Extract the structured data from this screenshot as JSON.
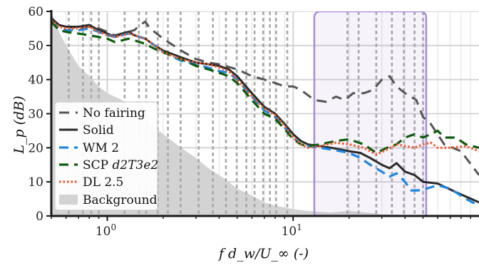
{
  "chart_data": {
    "type": "line",
    "xscale": "log",
    "xlim": [
      0.5,
      100
    ],
    "ylim": [
      0,
      60
    ],
    "xlabel": "f d_w/U_∞ (-)",
    "ylabel": "L_p (dB)",
    "xticks": [
      {
        "value": 1,
        "base": "10",
        "exp": "0"
      },
      {
        "value": 10,
        "base": "10",
        "exp": "1"
      }
    ],
    "yticks": [
      0,
      10,
      20,
      30,
      40,
      50,
      60
    ],
    "grid": true,
    "legend_position": "lower-left",
    "highlight_region": {
      "x0": 13,
      "x1": 52,
      "color": "#a78bdc"
    },
    "vertical_dotted_lines": [
      0.62,
      0.74,
      0.82,
      0.9,
      1.24,
      1.48,
      1.62,
      1.87,
      2.12,
      2.48,
      3.1,
      3.7,
      4.35,
      4.97,
      5.6,
      6.2,
      6.9,
      7.5,
      8.1,
      9.3,
      19.6,
      22.5,
      28,
      34,
      39.4,
      45,
      50
    ],
    "background": {
      "name": "Background",
      "color": "#d3d3d3",
      "points": [
        [
          0.5,
          60
        ],
        [
          0.55,
          54
        ],
        [
          0.6,
          50
        ],
        [
          0.7,
          44
        ],
        [
          0.8,
          41
        ],
        [
          0.9,
          38
        ],
        [
          1.0,
          36
        ],
        [
          1.2,
          34
        ],
        [
          1.5,
          30
        ],
        [
          1.8,
          26
        ],
        [
          2.0,
          24
        ],
        [
          2.5,
          20
        ],
        [
          3.0,
          17
        ],
        [
          3.5,
          14
        ],
        [
          4.0,
          12
        ],
        [
          4.5,
          10
        ],
        [
          5.0,
          8
        ],
        [
          5.5,
          7
        ],
        [
          6.0,
          6
        ],
        [
          7.0,
          4
        ],
        [
          8.0,
          3
        ],
        [
          9.0,
          2.5
        ],
        [
          10.0,
          2
        ],
        [
          12.0,
          1.5
        ],
        [
          14.0,
          1.2
        ],
        [
          16.0,
          1.0
        ],
        [
          20.0,
          1.5
        ],
        [
          25.0,
          1.0
        ],
        [
          30.0,
          0.5
        ],
        [
          40.0,
          0.3
        ],
        [
          100.0,
          0
        ]
      ]
    },
    "series": [
      {
        "name": "No fairing",
        "color": "#555555",
        "dash": "14,9",
        "width": 3,
        "points": [
          [
            0.5,
            58
          ],
          [
            0.55,
            56
          ],
          [
            0.6,
            55.5
          ],
          [
            0.7,
            55
          ],
          [
            0.8,
            55.5
          ],
          [
            0.9,
            55
          ],
          [
            1.0,
            54
          ],
          [
            1.1,
            53
          ],
          [
            1.2,
            53.5
          ],
          [
            1.3,
            54
          ],
          [
            1.4,
            54.5
          ],
          [
            1.5,
            56
          ],
          [
            1.6,
            57
          ],
          [
            1.7,
            55
          ],
          [
            2.0,
            52
          ],
          [
            2.5,
            48.5
          ],
          [
            3.0,
            46
          ],
          [
            3.5,
            45
          ],
          [
            4.0,
            44.5
          ],
          [
            5.0,
            43
          ],
          [
            6.0,
            41
          ],
          [
            7.0,
            40
          ],
          [
            8.0,
            39
          ],
          [
            9.0,
            38
          ],
          [
            10.0,
            38
          ],
          [
            11.0,
            37
          ],
          [
            13.0,
            34
          ],
          [
            15.0,
            33.5
          ],
          [
            17.0,
            35
          ],
          [
            19.0,
            34
          ],
          [
            21.0,
            36
          ],
          [
            24.0,
            36
          ],
          [
            27.0,
            37
          ],
          [
            30.0,
            40
          ],
          [
            33.0,
            41
          ],
          [
            36.0,
            38
          ],
          [
            40.0,
            36
          ],
          [
            43.0,
            35
          ],
          [
            46.0,
            34
          ],
          [
            50.0,
            29
          ],
          [
            55.0,
            27
          ],
          [
            65.0,
            21
          ],
          [
            80.0,
            19
          ],
          [
            100.0,
            12
          ]
        ]
      },
      {
        "name": "Solid",
        "color": "#2a2a2a",
        "dash": "",
        "width": 3,
        "points": [
          [
            0.5,
            58
          ],
          [
            0.55,
            56
          ],
          [
            0.6,
            55.5
          ],
          [
            0.7,
            55.5
          ],
          [
            0.8,
            56
          ],
          [
            0.9,
            54.5
          ],
          [
            1.0,
            53.5
          ],
          [
            1.1,
            52.5
          ],
          [
            1.2,
            53.5
          ],
          [
            1.3,
            54
          ],
          [
            1.4,
            53
          ],
          [
            1.6,
            52
          ],
          [
            1.8,
            50
          ],
          [
            2.0,
            48.5
          ],
          [
            2.5,
            46.5
          ],
          [
            3.0,
            45
          ],
          [
            3.5,
            44.5
          ],
          [
            4.0,
            44
          ],
          [
            4.5,
            43
          ],
          [
            5.0,
            41
          ],
          [
            6.0,
            36
          ],
          [
            7.0,
            32
          ],
          [
            8.0,
            30
          ],
          [
            9.0,
            27
          ],
          [
            10.0,
            24
          ],
          [
            11.0,
            22
          ],
          [
            12.0,
            21
          ],
          [
            14.0,
            20.5
          ],
          [
            16.0,
            20
          ],
          [
            18.0,
            19.5
          ],
          [
            20.0,
            19
          ],
          [
            23.0,
            18.5
          ],
          [
            26.0,
            17
          ],
          [
            30.0,
            15
          ],
          [
            33.0,
            14
          ],
          [
            36.0,
            15.5
          ],
          [
            40.0,
            13
          ],
          [
            45.0,
            12
          ],
          [
            50.0,
            10
          ],
          [
            60.0,
            9.5
          ],
          [
            75.0,
            7
          ],
          [
            100.0,
            4
          ]
        ]
      },
      {
        "name": "WM 2",
        "color": "#1f86e0",
        "dash": "13,8",
        "width": 3.2,
        "points": [
          [
            0.5,
            57
          ],
          [
            0.55,
            55
          ],
          [
            0.6,
            54.5
          ],
          [
            0.7,
            54.5
          ],
          [
            0.8,
            55
          ],
          [
            0.9,
            54
          ],
          [
            1.0,
            53
          ],
          [
            1.1,
            52.5
          ],
          [
            1.2,
            53
          ],
          [
            1.3,
            53.5
          ],
          [
            1.4,
            53
          ],
          [
            1.6,
            52
          ],
          [
            1.8,
            50
          ],
          [
            2.0,
            48
          ],
          [
            2.5,
            45.5
          ],
          [
            3.0,
            44.5
          ],
          [
            3.5,
            43.5
          ],
          [
            4.0,
            42.5
          ],
          [
            4.5,
            42
          ],
          [
            5.0,
            40
          ],
          [
            6.0,
            35
          ],
          [
            7.0,
            31
          ],
          [
            8.0,
            29
          ],
          [
            9.0,
            26
          ],
          [
            10.0,
            23
          ],
          [
            11.0,
            21
          ],
          [
            12.0,
            20.5
          ],
          [
            14.0,
            20
          ],
          [
            16.0,
            19.5
          ],
          [
            18.0,
            19
          ],
          [
            20.0,
            18.5
          ],
          [
            23.0,
            17
          ],
          [
            26.0,
            15
          ],
          [
            30.0,
            13
          ],
          [
            33.0,
            11.5
          ],
          [
            36.0,
            12.5
          ],
          [
            40.0,
            10
          ],
          [
            43.0,
            7.5
          ],
          [
            47.0,
            7.5
          ],
          [
            52.0,
            8
          ],
          [
            60.0,
            9
          ],
          [
            70.0,
            8
          ],
          [
            85.0,
            5
          ],
          [
            100.0,
            3
          ]
        ]
      },
      {
        "name": "SCP",
        "name_suffix": "d2T3e2",
        "color": "#0d5c0d",
        "dash": "13,8",
        "width": 3.2,
        "points": [
          [
            0.5,
            57
          ],
          [
            0.55,
            54.5
          ],
          [
            0.6,
            54
          ],
          [
            0.7,
            53.5
          ],
          [
            0.8,
            53
          ],
          [
            0.9,
            52.5
          ],
          [
            1.0,
            52
          ],
          [
            1.1,
            51
          ],
          [
            1.2,
            51.5
          ],
          [
            1.3,
            52
          ],
          [
            1.4,
            51.5
          ],
          [
            1.6,
            50.5
          ],
          [
            1.8,
            49
          ],
          [
            2.0,
            48
          ],
          [
            2.5,
            46
          ],
          [
            3.0,
            44
          ],
          [
            3.5,
            43
          ],
          [
            4.0,
            42
          ],
          [
            4.5,
            41
          ],
          [
            5.0,
            39
          ],
          [
            6.0,
            34
          ],
          [
            7.0,
            30
          ],
          [
            8.0,
            28.5
          ],
          [
            9.0,
            25.5
          ],
          [
            10.0,
            22.5
          ],
          [
            11.0,
            21
          ],
          [
            12.0,
            20.5
          ],
          [
            14.0,
            21
          ],
          [
            17.0,
            22
          ],
          [
            20.0,
            22.5
          ],
          [
            24.0,
            21
          ],
          [
            28.0,
            18.5
          ],
          [
            32.0,
            20
          ],
          [
            36.0,
            21
          ],
          [
            40.0,
            23
          ],
          [
            45.0,
            24
          ],
          [
            50.0,
            23
          ],
          [
            55.0,
            24
          ],
          [
            60.0,
            25
          ],
          [
            65.0,
            23
          ],
          [
            75.0,
            23
          ],
          [
            85.0,
            21
          ],
          [
            100.0,
            20
          ]
        ]
      },
      {
        "name": "DL 2.5",
        "color": "#f0592b",
        "dash": "2.5,3",
        "width": 3.2,
        "points": [
          [
            0.5,
            57.5
          ],
          [
            0.55,
            55.5
          ],
          [
            0.6,
            55
          ],
          [
            0.7,
            55
          ],
          [
            0.8,
            55.5
          ],
          [
            0.9,
            54
          ],
          [
            1.0,
            53
          ],
          [
            1.1,
            52.5
          ],
          [
            1.2,
            53
          ],
          [
            1.3,
            53.5
          ],
          [
            1.4,
            53
          ],
          [
            1.6,
            52
          ],
          [
            1.8,
            50
          ],
          [
            2.0,
            48
          ],
          [
            2.5,
            46
          ],
          [
            3.0,
            45
          ],
          [
            3.5,
            44.5
          ],
          [
            4.0,
            43.5
          ],
          [
            4.5,
            42.5
          ],
          [
            5.0,
            40
          ],
          [
            6.0,
            35
          ],
          [
            7.0,
            31.5
          ],
          [
            8.0,
            29.5
          ],
          [
            9.0,
            26.5
          ],
          [
            10.0,
            23
          ],
          [
            11.0,
            21
          ],
          [
            12.0,
            20
          ],
          [
            14.0,
            20.5
          ],
          [
            17.0,
            21.5
          ],
          [
            20.0,
            21
          ],
          [
            24.0,
            20
          ],
          [
            28.0,
            18
          ],
          [
            32.0,
            19.5
          ],
          [
            36.0,
            21
          ],
          [
            40.0,
            20.5
          ],
          [
            45.0,
            20
          ],
          [
            50.0,
            21
          ],
          [
            55.0,
            21.5
          ],
          [
            60.0,
            20
          ],
          [
            70.0,
            20
          ],
          [
            85.0,
            20.5
          ],
          [
            100.0,
            19
          ]
        ]
      }
    ],
    "legend": {
      "entries": [
        "No fairing",
        "Solid",
        "WM 2",
        "SCP",
        "DL 2.5",
        "Background"
      ]
    }
  }
}
